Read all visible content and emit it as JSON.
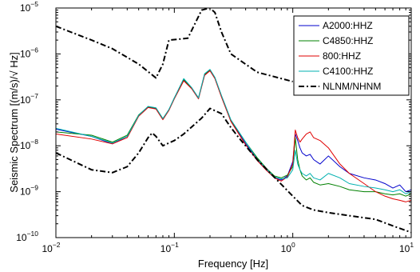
{
  "chart_data": {
    "type": "line",
    "title": "",
    "xlabel": "Frequency [Hz]",
    "ylabel": "Seismic Spectrum [(m/s)/√ Hz]",
    "xscale": "log",
    "yscale": "log",
    "xlim": [
      0.01,
      10
    ],
    "ylim": [
      1e-10,
      1e-05
    ],
    "grid": false,
    "legend_position": "top-right",
    "x_ticks": [
      {
        "base": "10",
        "exp": "−2",
        "value": 0.01
      },
      {
        "base": "10",
        "exp": "−1",
        "value": 0.1
      },
      {
        "base": "10",
        "exp": "0",
        "value": 1
      },
      {
        "base": "10",
        "exp": "1",
        "value": 10
      }
    ],
    "y_ticks": [
      {
        "base": "10",
        "exp": "−10",
        "value": 1e-10
      },
      {
        "base": "10",
        "exp": "−9",
        "value": 1e-09
      },
      {
        "base": "10",
        "exp": "−8",
        "value": 1e-08
      },
      {
        "base": "10",
        "exp": "−7",
        "value": 1e-07
      },
      {
        "base": "10",
        "exp": "−6",
        "value": 1e-06
      },
      {
        "base": "10",
        "exp": "−5",
        "value": 1e-05
      }
    ],
    "series": [
      {
        "name": "A2000:HHZ",
        "color": "#0000cc",
        "style": "solid",
        "x": [
          0.01,
          0.02,
          0.03,
          0.04,
          0.05,
          0.06,
          0.07,
          0.08,
          0.09,
          0.1,
          0.12,
          0.14,
          0.16,
          0.18,
          0.2,
          0.22,
          0.25,
          0.3,
          0.4,
          0.5,
          0.6,
          0.7,
          0.8,
          0.9,
          1.0,
          1.05,
          1.1,
          1.15,
          1.2,
          1.3,
          1.4,
          1.5,
          1.7,
          2.0,
          2.5,
          3.0,
          4.0,
          5.0,
          6.0,
          7.0,
          8.0,
          9.0,
          10.0
        ],
        "y": [
          2.3e-08,
          1.6e-08,
          1.1e-08,
          1.6e-08,
          4.5e-08,
          7e-08,
          6.5e-08,
          3.8e-08,
          6e-08,
          1.1e-07,
          2.7e-07,
          1.8e-07,
          1.1e-07,
          3.5e-07,
          4.4e-07,
          3e-07,
          1.2e-07,
          3.5e-08,
          1.1e-08,
          5e-09,
          3e-09,
          2e-09,
          1.8e-09,
          2.2e-09,
          4.5e-09,
          1.8e-08,
          1.3e-08,
          9e-09,
          7e-09,
          6e-09,
          6.5e-09,
          5e-09,
          4e-09,
          6e-09,
          3.5e-09,
          2.5e-09,
          2e-09,
          1.8e-09,
          1.5e-09,
          1.2e-09,
          1.4e-09,
          1e-09,
          1.1e-09
        ]
      },
      {
        "name": "C4850:HHZ",
        "color": "#008000",
        "style": "solid",
        "x": [
          0.01,
          0.02,
          0.03,
          0.04,
          0.05,
          0.06,
          0.07,
          0.08,
          0.09,
          0.1,
          0.12,
          0.14,
          0.16,
          0.18,
          0.2,
          0.22,
          0.25,
          0.3,
          0.4,
          0.5,
          0.6,
          0.7,
          0.8,
          0.9,
          1.0,
          1.05,
          1.1,
          1.15,
          1.2,
          1.3,
          1.4,
          1.5,
          1.7,
          2.0,
          2.5,
          3.0,
          4.0,
          5.0,
          6.0,
          7.0,
          8.0,
          9.0,
          10.0
        ],
        "y": [
          2e-08,
          1.7e-08,
          1.2e-08,
          1.7e-08,
          4.7e-08,
          7.1e-08,
          6.6e-08,
          3.9e-08,
          6.1e-08,
          1.1e-07,
          2.8e-07,
          1.8e-07,
          1.1e-07,
          3.6e-07,
          4.5e-07,
          3e-07,
          1.2e-07,
          3.6e-08,
          1.2e-08,
          5.5e-09,
          3.2e-09,
          2.2e-09,
          2e-09,
          2.3e-09,
          3.5e-09,
          1.5e-08,
          5e-09,
          3e-09,
          2.2e-09,
          1.8e-09,
          2e-09,
          1.6e-09,
          1.4e-09,
          1.5e-09,
          1.3e-09,
          1.1e-09,
          1e-09,
          1e-09,
          9e-10,
          8.5e-10,
          9e-10,
          8e-10,
          9e-10
        ]
      },
      {
        "name": "800:HHZ",
        "color": "#e00000",
        "style": "solid",
        "x": [
          0.01,
          0.02,
          0.03,
          0.04,
          0.05,
          0.06,
          0.07,
          0.08,
          0.09,
          0.1,
          0.12,
          0.14,
          0.16,
          0.18,
          0.2,
          0.22,
          0.25,
          0.3,
          0.4,
          0.5,
          0.6,
          0.7,
          0.8,
          0.9,
          1.0,
          1.05,
          1.1,
          1.15,
          1.2,
          1.3,
          1.4,
          1.5,
          1.7,
          2.0,
          2.5,
          3.0,
          4.0,
          5.0,
          6.0,
          7.0,
          8.0,
          9.0,
          10.0
        ],
        "y": [
          1.8e-08,
          1.4e-08,
          1.1e-08,
          1.5e-08,
          4.4e-08,
          6.8e-08,
          6.3e-08,
          3.7e-08,
          5.9e-08,
          1.05e-07,
          2.6e-07,
          1.75e-07,
          1.05e-07,
          3.4e-07,
          4.3e-07,
          2.9e-07,
          1.15e-07,
          3.4e-08,
          1.05e-08,
          4.8e-09,
          2.9e-09,
          2e-09,
          1.7e-09,
          2.1e-09,
          4e-09,
          2.2e-08,
          1.5e-08,
          1.2e-08,
          1.4e-08,
          1.8e-08,
          2e-08,
          1.5e-08,
          1.3e-08,
          9e-09,
          4e-09,
          2.5e-09,
          1.5e-09,
          1e-09,
          8e-10,
          7e-10,
          6.5e-10,
          6e-10,
          6.5e-10
        ]
      },
      {
        "name": "C4100:HHZ",
        "color": "#00b0b0",
        "style": "solid",
        "x": [
          0.01,
          0.02,
          0.03,
          0.04,
          0.05,
          0.06,
          0.07,
          0.08,
          0.09,
          0.1,
          0.12,
          0.14,
          0.16,
          0.18,
          0.2,
          0.22,
          0.25,
          0.3,
          0.4,
          0.5,
          0.6,
          0.7,
          0.8,
          0.9,
          1.0,
          1.05,
          1.1,
          1.15,
          1.2,
          1.3,
          1.4,
          1.5,
          1.7,
          2.0,
          2.5,
          3.0,
          4.0,
          5.0,
          6.0,
          7.0,
          8.0,
          9.0,
          10.0
        ],
        "y": [
          2.4e-08,
          1.6e-08,
          1.15e-08,
          1.6e-08,
          4.6e-08,
          7.2e-08,
          6.7e-08,
          3.9e-08,
          6.2e-08,
          1.1e-07,
          2.9e-07,
          1.85e-07,
          1.1e-07,
          3.7e-07,
          4.6e-07,
          3.1e-07,
          1.25e-07,
          3.7e-08,
          1.2e-08,
          5.2e-09,
          3.1e-09,
          2.1e-09,
          1.9e-09,
          2e-09,
          3e-09,
          8e-09,
          4e-09,
          3e-09,
          2.5e-09,
          2.2e-09,
          2.5e-09,
          2e-09,
          1.8e-09,
          2.5e-09,
          2e-09,
          1.5e-09,
          1.3e-09,
          1.2e-09,
          1.1e-09,
          1e-09,
          1.1e-09,
          9e-10,
          1e-09
        ]
      },
      {
        "name": "NLNM/NHNM",
        "color": "#000000",
        "style": "dashdot",
        "segments": [
          {
            "x": [
              0.01,
              0.02,
              0.03,
              0.04,
              0.05,
              0.06,
              0.065,
              0.07,
              0.08,
              0.1,
              0.12,
              0.15,
              0.17,
              0.2,
              0.25,
              0.3,
              0.35,
              0.5,
              1.0,
              1.2,
              1.5,
              2.0,
              3.0,
              5.0,
              7.0,
              10.0
            ],
            "y": [
              7e-09,
              3e-09,
              2.6e-09,
              3.5e-09,
              7e-09,
              1.5e-08,
              1.9e-08,
              1.6e-08,
              1e-08,
              1.3e-08,
              1.8e-08,
              3e-08,
              4e-08,
              6.5e-08,
              5e-08,
              2.5e-08,
              1.5e-08,
              5e-09,
              8e-10,
              5e-10,
              4e-10,
              3.5e-10,
              3e-10,
              2.5e-10,
              1.8e-10,
              1.3e-10
            ]
          },
          {
            "x": [
              0.01,
              0.02,
              0.03,
              0.05,
              0.07,
              0.08,
              0.09,
              0.11,
              0.13,
              0.17,
              0.2,
              0.22,
              0.25,
              0.3,
              0.5,
              1.0
            ],
            "y": [
              4e-06,
              2e-06,
              1.3e-06,
              6e-07,
              3e-07,
              6e-07,
              2e-06,
              2.1e-06,
              2.2e-06,
              9e-06,
              1e-05,
              8e-06,
              3e-06,
              1e-06,
              4e-07,
              2.5e-07
            ]
          }
        ]
      }
    ]
  }
}
